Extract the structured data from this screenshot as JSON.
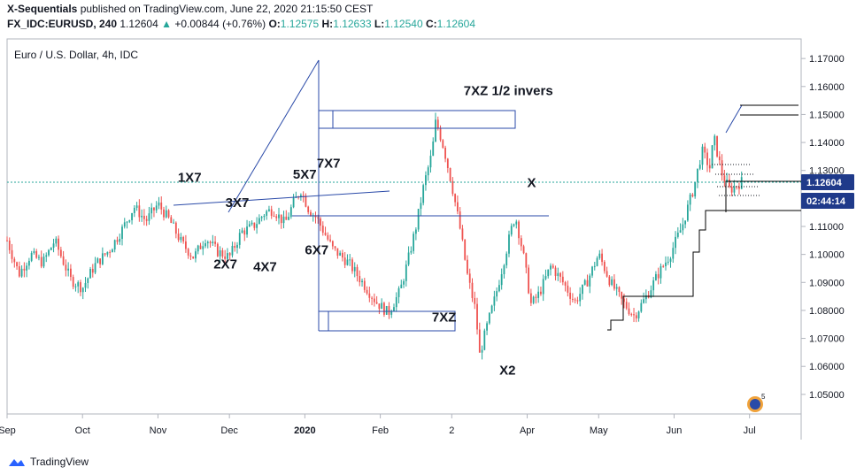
{
  "header": {
    "publisher": "X-Sequentials",
    "published_text": "published on TradingView.com, June 22, 2020 21:15:50 CEST",
    "symbol": "FX_IDC:EURUSD, 240",
    "last": "1.12604",
    "change_arrow": "▲",
    "change": "+0.00844 (+0.76%)",
    "o_label": "O:",
    "o_value": "1.12575",
    "h_label": "H:",
    "h_value": "1.12633",
    "l_label": "L:",
    "l_value": "1.12540",
    "c_label": "C:",
    "c_value": "1.12604"
  },
  "pane_title": "Euro / U.S. Dollar, 4h, IDC",
  "price_badge": "1.12604",
  "countdown_badge": "02:44:14",
  "footer": {
    "brand": "TradingView",
    "logo_icon": "tradingview-logo-icon"
  },
  "colors": {
    "up": "#26a69a",
    "down": "#ef5350",
    "drawing": "#2a4aa8",
    "step": "#000000",
    "badge": "#1f3a8a"
  },
  "chart_data": {
    "type": "candlestick",
    "title": "Euro / U.S. Dollar, 4h, IDC",
    "ylim": [
      1.043,
      1.177
    ],
    "y_ticks": [
      "1.17000",
      "1.16000",
      "1.15000",
      "1.14000",
      "1.13000",
      "1.11000",
      "1.10000",
      "1.09000",
      "1.08000",
      "1.07000",
      "1.06000",
      "1.05000"
    ],
    "x_ticks": [
      "Sep",
      "Oct",
      "Nov",
      "Dec",
      "2020",
      "Feb",
      "2",
      "Apr",
      "May",
      "Jun",
      "Jul"
    ],
    "price_path": [
      [
        0,
        1.105
      ],
      [
        3,
        1.093
      ],
      [
        6,
        1.1
      ],
      [
        9,
        1.097
      ],
      [
        12,
        1.105
      ],
      [
        16,
        1.091
      ],
      [
        19,
        1.088
      ],
      [
        22,
        1.096
      ],
      [
        26,
        1.102
      ],
      [
        29,
        1.109
      ],
      [
        32,
        1.117
      ],
      [
        35,
        1.112
      ],
      [
        38,
        1.118
      ],
      [
        41,
        1.112
      ],
      [
        44,
        1.104
      ],
      [
        47,
        1.099
      ],
      [
        50,
        1.106
      ],
      [
        53,
        1.101
      ],
      [
        56,
        1.099
      ],
      [
        59,
        1.108
      ],
      [
        62,
        1.11
      ],
      [
        65,
        1.115
      ],
      [
        67,
        1.116
      ],
      [
        70,
        1.111
      ],
      [
        72,
        1.118
      ],
      [
        74,
        1.123
      ],
      [
        76,
        1.116
      ],
      [
        78,
        1.113
      ],
      [
        82,
        1.102
      ],
      [
        86,
        1.097
      ],
      [
        90,
        1.089
      ],
      [
        93,
        1.083
      ],
      [
        96,
        1.079
      ],
      [
        99,
        1.087
      ],
      [
        101,
        1.098
      ],
      [
        103,
        1.11
      ],
      [
        105,
        1.125
      ],
      [
        107,
        1.136
      ],
      [
        108,
        1.148
      ],
      [
        110,
        1.138
      ],
      [
        112,
        1.125
      ],
      [
        114,
        1.11
      ],
      [
        116,
        1.092
      ],
      [
        118,
        1.08
      ],
      [
        119,
        1.064
      ],
      [
        121,
        1.075
      ],
      [
        123,
        1.085
      ],
      [
        125,
        1.097
      ],
      [
        127,
        1.109
      ],
      [
        128,
        1.114
      ],
      [
        130,
        1.1
      ],
      [
        132,
        1.082
      ],
      [
        134,
        1.086
      ],
      [
        137,
        1.096
      ],
      [
        140,
        1.09
      ],
      [
        143,
        1.083
      ],
      [
        146,
        1.09
      ],
      [
        149,
        1.1
      ],
      [
        152,
        1.09
      ],
      [
        155,
        1.083
      ],
      [
        158,
        1.078
      ],
      [
        161,
        1.085
      ],
      [
        164,
        1.093
      ],
      [
        167,
        1.1
      ],
      [
        170,
        1.11
      ],
      [
        173,
        1.124
      ],
      [
        175,
        1.137
      ],
      [
        177,
        1.131
      ],
      [
        178,
        1.142
      ],
      [
        180,
        1.129
      ],
      [
        182,
        1.123
      ],
      [
        185,
        1.126
      ]
    ],
    "annotations": [
      {
        "text": "1X7",
        "x": 43,
        "y": 1.126
      },
      {
        "text": "2X7",
        "x": 52,
        "y": 1.095
      },
      {
        "text": "3X7",
        "x": 55,
        "y": 1.117
      },
      {
        "text": "4X7",
        "x": 62,
        "y": 1.094
      },
      {
        "text": "5X7",
        "x": 72,
        "y": 1.127
      },
      {
        "text": "6X7",
        "x": 75,
        "y": 1.1
      },
      {
        "text": "7X7",
        "x": 78,
        "y": 1.131
      },
      {
        "text": "7XZ 1/2 invers",
        "x": 115,
        "y": 1.157
      },
      {
        "text": "7XZ",
        "x": 107,
        "y": 1.076
      },
      {
        "text": "X",
        "x": 131,
        "y": 1.124
      },
      {
        "text": "X2",
        "x": 124,
        "y": 1.057
      }
    ]
  }
}
